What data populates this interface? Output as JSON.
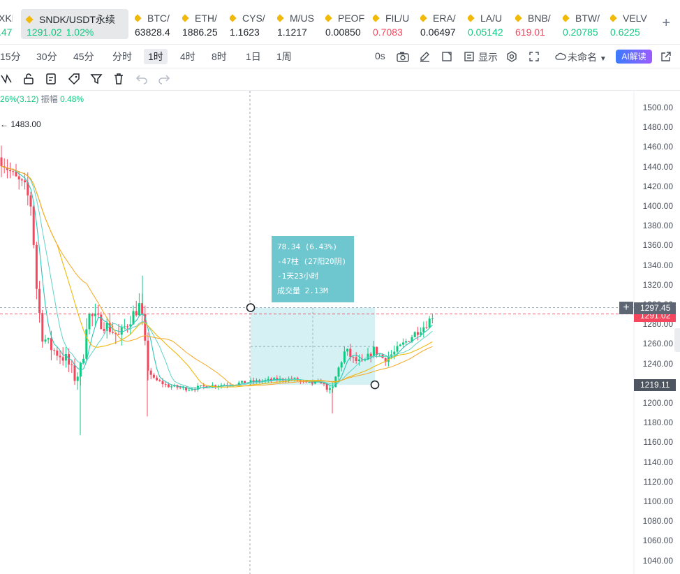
{
  "tickers": [
    {
      "name": "XKHY",
      "price": ".47",
      "change": "",
      "price_color": "up",
      "left": 0
    },
    {
      "name": "SNDK/USDT永续",
      "price": "1291.02",
      "change": "1.02%",
      "price_color": "up",
      "active": true
    },
    {
      "name": "BTC/",
      "price": "63828.4",
      "price_color": "dark"
    },
    {
      "name": "ETH/",
      "price": "1886.25",
      "price_color": "dark"
    },
    {
      "name": "CYS/",
      "price": "1.1623",
      "price_color": "dark"
    },
    {
      "name": "M/US",
      "price": "1.1217",
      "price_color": "dark"
    },
    {
      "name": "PEOF",
      "price": "0.00850",
      "price_color": "dark"
    },
    {
      "name": "FIL/U",
      "price": "0.7083",
      "price_color": "down"
    },
    {
      "name": "ERA/",
      "price": "0.06497",
      "price_color": "dark"
    },
    {
      "name": "LA/U",
      "price": "0.05142",
      "price_color": "up"
    },
    {
      "name": "BNB/",
      "price": "619.01",
      "price_color": "down"
    },
    {
      "name": "BTW/",
      "price": "0.20785",
      "price_color": "up"
    },
    {
      "name": "VELV",
      "price": "0.6225",
      "price_color": "up"
    }
  ],
  "add_tab": "+",
  "intervals": [
    "15分",
    "30分",
    "45分",
    "分时",
    "1时",
    "4时",
    "8时",
    "1日",
    "1周"
  ],
  "selected_interval": "1时",
  "right_tools": {
    "timer": "0s",
    "display": "显示",
    "layout_name": "未命名",
    "ai_button": "AI解读"
  },
  "chart": {
    "info_change": "26%(3.12)",
    "info_amplitude_label": "振幅",
    "info_amplitude": "0.48%",
    "high_marker": "1483.00",
    "axis_labels": [
      "1500.00",
      "1480.00",
      "1460.00",
      "1440.00",
      "1420.00",
      "1400.00",
      "1380.00",
      "1360.00",
      "1340.00",
      "1320.00",
      "1300.00",
      "1280.00",
      "1260.00",
      "1240.00",
      "1220.00",
      "1200.00",
      "1180.00",
      "1160.00",
      "1140.00",
      "1120.00",
      "1100.00",
      "1080.00",
      "1060.00",
      "1040.00"
    ],
    "crosshair_price": "1297.45",
    "last_price": "1291.02",
    "measure_low": "1219.11",
    "measure": {
      "change": "78.34 (6.43%)",
      "bars": "-47柱 (27阳20阴)",
      "duration": "-1天23小时",
      "volume": "成交量 2.13M"
    },
    "colors": {
      "up": "#0ecb81",
      "down": "#f6465d",
      "ma_fast": "#2ec4b6",
      "ma_slow": "#f0b90b",
      "ma_mid": "#f5a623"
    }
  }
}
